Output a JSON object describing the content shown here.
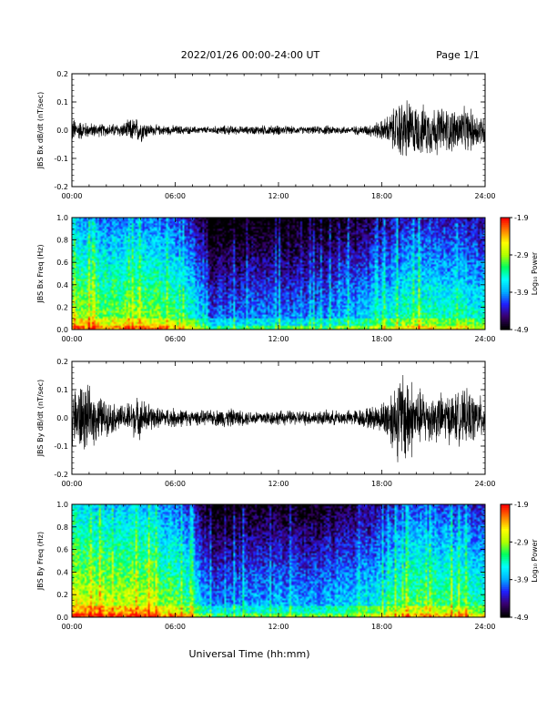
{
  "header": {
    "title": "2022/01/26  00:00-24:00 UT",
    "page": "Page 1/1"
  },
  "xaxis_label": "Universal Time (hh:mm)",
  "colorbar": {
    "label": "Log₁₀ Power",
    "ticks": [
      "-1.9",
      "-2.9",
      "-3.9",
      "-4.9"
    ],
    "range": [
      -4.9,
      -1.9
    ],
    "colormap": [
      "#000000",
      "#3a0070",
      "#2020ff",
      "#00b0ff",
      "#00ffff",
      "#00ff60",
      "#b0ff00",
      "#ffff00",
      "#ff8000",
      "#ff0000"
    ]
  },
  "chart_data": [
    {
      "type": "line",
      "id": "bx",
      "ylabel": "JBS Bx dB/dt (nT/sec)",
      "xlim": [
        0,
        24
      ],
      "ylim": [
        -0.2,
        0.2
      ],
      "x_ticks": [
        "00:00",
        "06:00",
        "12:00",
        "18:00",
        "24:00"
      ],
      "y_ticks": [
        "0.2",
        "0.1",
        "0.0",
        "-0.1",
        "-0.2"
      ],
      "color": "#000000",
      "envelope": {
        "hours": [
          0,
          1,
          2,
          3,
          3.5,
          4,
          4.5,
          5,
          6,
          7,
          8,
          9,
          10,
          11,
          12,
          13,
          14,
          15,
          16,
          17,
          18,
          18.5,
          19,
          19.5,
          20,
          21,
          22,
          23,
          24
        ],
        "amplitude": [
          0.05,
          0.03,
          0.025,
          0.03,
          0.05,
          0.05,
          0.025,
          0.02,
          0.02,
          0.015,
          0.015,
          0.02,
          0.015,
          0.02,
          0.02,
          0.015,
          0.015,
          0.02,
          0.015,
          0.02,
          0.04,
          0.07,
          0.12,
          0.13,
          0.1,
          0.1,
          0.09,
          0.09,
          0.06
        ]
      }
    },
    {
      "type": "heatmap",
      "id": "bx-spec",
      "ylabel": "JBS Bx Freq (Hz)",
      "xlim": [
        0,
        24
      ],
      "ylim": [
        0,
        1.0
      ],
      "x_ticks": [
        "00:00",
        "06:00",
        "12:00",
        "18:00",
        "24:00"
      ],
      "y_ticks": [
        "1.0",
        "0.8",
        "0.6",
        "0.4",
        "0.2",
        "0.0"
      ],
      "activity": {
        "hours": [
          0,
          2,
          4,
          6,
          7,
          8,
          10,
          12,
          14,
          16,
          18,
          19,
          20,
          22,
          24
        ],
        "level": [
          0.72,
          0.66,
          0.7,
          0.6,
          0.52,
          0.3,
          0.34,
          0.36,
          0.34,
          0.4,
          0.46,
          0.55,
          0.58,
          0.56,
          0.5
        ]
      }
    },
    {
      "type": "line",
      "id": "by",
      "ylabel": "JBS By dB/dt (nT/sec)",
      "xlim": [
        0,
        24
      ],
      "ylim": [
        -0.2,
        0.2
      ],
      "x_ticks": [
        "00:00",
        "06:00",
        "12:00",
        "18:00",
        "24:00"
      ],
      "y_ticks": [
        "0.2",
        "0.1",
        "0.0",
        "-0.1",
        "-0.2"
      ],
      "color": "#000000",
      "envelope": {
        "hours": [
          0,
          0.5,
          1,
          1.5,
          2,
          3,
          3.5,
          4,
          4.5,
          5,
          6,
          7,
          8,
          9,
          10,
          11,
          12,
          13,
          14,
          15,
          16,
          17,
          18,
          18.5,
          19,
          19.5,
          20,
          21,
          22,
          23,
          24
        ],
        "amplitude": [
          0.12,
          0.15,
          0.12,
          0.1,
          0.07,
          0.05,
          0.08,
          0.08,
          0.06,
          0.04,
          0.04,
          0.03,
          0.03,
          0.04,
          0.03,
          0.03,
          0.03,
          0.03,
          0.03,
          0.03,
          0.03,
          0.04,
          0.06,
          0.12,
          0.18,
          0.2,
          0.12,
          0.1,
          0.1,
          0.11,
          0.08
        ]
      }
    },
    {
      "type": "heatmap",
      "id": "by-spec",
      "ylabel": "JBS By Freq (Hz)",
      "xlim": [
        0,
        24
      ],
      "ylim": [
        0,
        1.0
      ],
      "x_ticks": [
        "00:00",
        "06:00",
        "12:00",
        "18:00",
        "24:00"
      ],
      "y_ticks": [
        "1.0",
        "0.8",
        "0.6",
        "0.4",
        "0.2",
        "0.0"
      ],
      "activity": {
        "hours": [
          0,
          2,
          4,
          6,
          7,
          8,
          10,
          12,
          14,
          16,
          18,
          19,
          20,
          22,
          24
        ],
        "level": [
          0.8,
          0.74,
          0.76,
          0.66,
          0.58,
          0.34,
          0.38,
          0.4,
          0.38,
          0.44,
          0.52,
          0.6,
          0.64,
          0.62,
          0.56
        ]
      }
    }
  ]
}
